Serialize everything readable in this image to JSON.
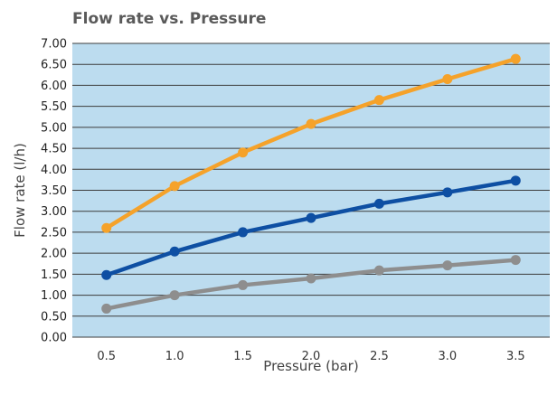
{
  "chart_data": {
    "type": "line",
    "title": "Flow rate vs. Pressure",
    "xlabel": "Pressure (bar)",
    "ylabel": "Flow rate (l/h)",
    "x": [
      0.5,
      1.0,
      1.5,
      2.0,
      2.5,
      3.0,
      3.5
    ],
    "x_tick_labels": [
      "0.5",
      "1.0",
      "1.5",
      "2.0",
      "2.5",
      "3.0",
      "3.5"
    ],
    "y_tick_labels": [
      "0.00",
      "0.50",
      "1.00",
      "1.50",
      "2.00",
      "2.50",
      "3.00",
      "3.50",
      "4.00",
      "4.50",
      "5.00",
      "5.50",
      "6.00",
      "6.50",
      "7.00"
    ],
    "xlim": [
      0.25,
      3.75
    ],
    "ylim": [
      0,
      7
    ],
    "grid": true,
    "legend": "none",
    "colors": {
      "plot_background": "#bcdcef",
      "gridline": "#3c3c3c"
    },
    "series": [
      {
        "color": "#f5a22a",
        "values": [
          2.6,
          3.6,
          4.4,
          5.08,
          5.65,
          6.15,
          6.63
        ]
      },
      {
        "color": "#0e4fa3",
        "values": [
          1.48,
          2.04,
          2.5,
          2.84,
          3.18,
          3.45,
          3.73
        ]
      },
      {
        "color": "#8e8e8e",
        "values": [
          0.68,
          1.0,
          1.24,
          1.4,
          1.59,
          1.71,
          1.84
        ]
      }
    ]
  }
}
